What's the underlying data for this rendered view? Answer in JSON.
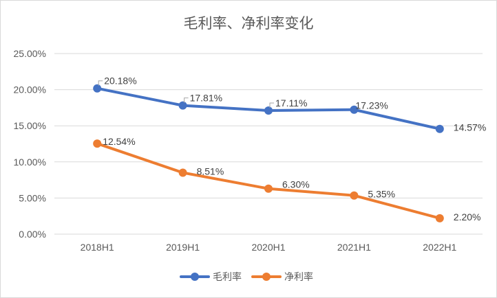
{
  "chart_data": {
    "type": "line",
    "title": "毛利率、净利率变化",
    "categories": [
      "2018H1",
      "2019H1",
      "2020H1",
      "2021H1",
      "2022H1"
    ],
    "y_ticks": [
      "0.00%",
      "5.00%",
      "10.00%",
      "15.00%",
      "20.00%",
      "25.00%"
    ],
    "ylim": [
      0,
      25
    ],
    "grid": true,
    "legend_position": "bottom",
    "series": [
      {
        "name": "毛利率",
        "color": "#4472C4",
        "values": [
          20.18,
          17.81,
          17.11,
          17.23,
          14.57
        ],
        "labels": [
          "20.18%",
          "17.81%",
          "17.11%",
          "17.23%",
          "14.57%"
        ]
      },
      {
        "name": "净利率",
        "color": "#ED7D31",
        "values": [
          12.54,
          8.51,
          6.3,
          5.35,
          2.2
        ],
        "labels": [
          "12.54%",
          "8.51%",
          "6.30%",
          "5.35%",
          "2.20%"
        ]
      }
    ]
  }
}
